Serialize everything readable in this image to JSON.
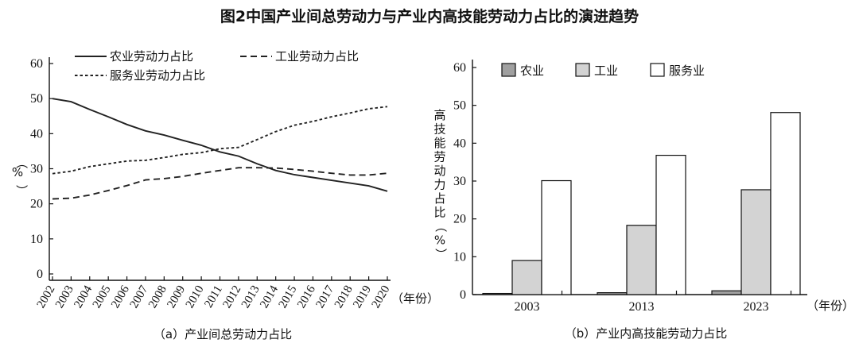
{
  "title": "图2中国产业间总劳动力与产业内高技能劳动力占比的演进趋势",
  "chart_data": [
    {
      "type": "line",
      "caption": "（a）产业间总劳动力占比",
      "ylabel": "（%）",
      "xlabel": "（年份）",
      "ylim": [
        0,
        60
      ],
      "yticks": [
        "0",
        "10",
        "20",
        "30",
        "40",
        "50",
        "60"
      ],
      "x": [
        "2002",
        "2003",
        "2004",
        "2005",
        "2006",
        "2007",
        "2008",
        "2009",
        "2010",
        "2011",
        "2012",
        "2013",
        "2014",
        "2015",
        "2016",
        "2017",
        "2018",
        "2019",
        "2020"
      ],
      "legend": [
        "农业劳动力占比",
        "工业劳动力占比",
        "服务业劳动力占比"
      ],
      "legend_position": "top",
      "series": [
        {
          "name": "农业劳动力占比",
          "style": "solid",
          "values": [
            50.0,
            49.1,
            46.9,
            44.8,
            42.6,
            40.8,
            39.6,
            38.1,
            36.7,
            34.8,
            33.6,
            31.4,
            29.5,
            28.3,
            27.5,
            26.7,
            25.9,
            25.1,
            23.6
          ]
        },
        {
          "name": "工业劳动力占比",
          "style": "dashed",
          "values": [
            21.4,
            21.6,
            22.5,
            23.8,
            25.2,
            26.8,
            27.2,
            27.8,
            28.7,
            29.5,
            30.3,
            30.3,
            30.2,
            29.8,
            29.3,
            28.7,
            28.2,
            28.2,
            28.7
          ]
        },
        {
          "name": "服务业劳动力占比",
          "style": "dotted",
          "values": [
            28.6,
            29.3,
            30.6,
            31.4,
            32.2,
            32.4,
            33.2,
            34.1,
            34.6,
            35.7,
            36.1,
            38.3,
            40.6,
            42.4,
            43.5,
            44.8,
            45.9,
            47.1,
            47.7
          ]
        }
      ]
    },
    {
      "type": "bar",
      "caption": "（b）产业内高技能劳动力占比",
      "ylabel": "高技能劳动力占比（%）",
      "xlabel": "（年份）",
      "ylim": [
        0,
        60
      ],
      "yticks": [
        "0",
        "10",
        "20",
        "30",
        "40",
        "50",
        "60"
      ],
      "categories": [
        "2003",
        "2013",
        "2023"
      ],
      "legend": [
        "农业",
        "工业",
        "服务业"
      ],
      "legend_position": "top-left",
      "series": [
        {
          "name": "农业",
          "color": "#a0a0a0",
          "values": [
            0.3,
            0.5,
            1.0
          ]
        },
        {
          "name": "工业",
          "color": "#d3d3d3",
          "values": [
            9.0,
            18.3,
            27.7
          ]
        },
        {
          "name": "服务业",
          "color": "#ffffff",
          "values": [
            30.1,
            36.8,
            48.1
          ]
        }
      ]
    }
  ]
}
